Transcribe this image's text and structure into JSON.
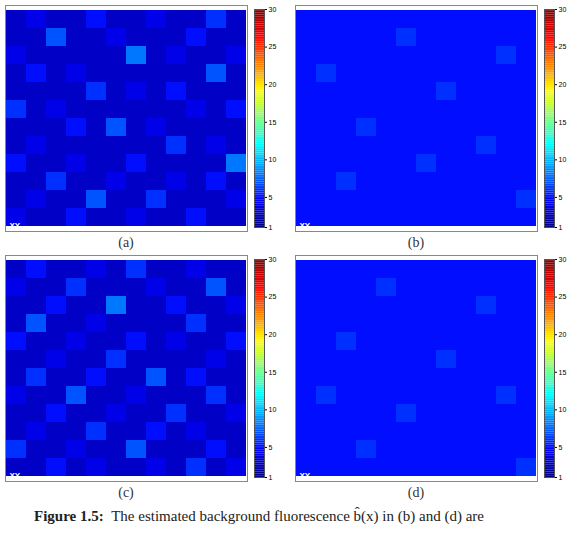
{
  "chart_data": [
    {
      "type": "heatmap",
      "title": "(a)",
      "annotation": "XY",
      "tick_labels": false,
      "cells": [
        [
          3,
          4,
          3,
          3,
          5,
          3,
          3,
          4,
          3,
          3,
          6,
          3
        ],
        [
          3,
          3,
          7,
          3,
          3,
          4,
          3,
          3,
          3,
          5,
          3,
          3
        ],
        [
          4,
          3,
          3,
          3,
          3,
          3,
          8,
          3,
          4,
          3,
          3,
          4
        ],
        [
          3,
          5,
          3,
          4,
          3,
          3,
          3,
          3,
          3,
          3,
          7,
          3
        ],
        [
          3,
          3,
          3,
          3,
          6,
          3,
          4,
          3,
          5,
          3,
          3,
          3
        ],
        [
          6,
          3,
          4,
          3,
          3,
          3,
          3,
          3,
          3,
          4,
          3,
          5
        ],
        [
          3,
          3,
          3,
          5,
          3,
          7,
          3,
          4,
          3,
          3,
          3,
          3
        ],
        [
          3,
          4,
          3,
          3,
          3,
          3,
          3,
          3,
          6,
          3,
          4,
          3
        ],
        [
          5,
          3,
          3,
          4,
          3,
          3,
          5,
          3,
          3,
          3,
          3,
          8
        ],
        [
          3,
          3,
          6,
          3,
          3,
          4,
          3,
          3,
          4,
          3,
          5,
          3
        ],
        [
          3,
          4,
          3,
          3,
          7,
          3,
          3,
          6,
          3,
          3,
          3,
          4
        ],
        [
          4,
          3,
          3,
          5,
          3,
          3,
          4,
          3,
          3,
          5,
          3,
          3
        ]
      ],
      "colorbar": {
        "range": [
          1,
          30
        ],
        "ticks": [
          1,
          5,
          10,
          15,
          20,
          25,
          30
        ]
      }
    },
    {
      "type": "heatmap",
      "title": "(b)",
      "annotation": "XY",
      "tick_labels": false,
      "cells": [
        [
          5,
          5,
          5,
          5,
          5,
          5,
          5,
          5,
          5,
          5,
          5,
          5
        ],
        [
          5,
          5,
          5,
          5,
          5,
          6,
          5,
          5,
          5,
          5,
          5,
          5
        ],
        [
          5,
          5,
          5,
          5,
          5,
          5,
          5,
          5,
          5,
          5,
          6,
          5
        ],
        [
          5,
          6,
          5,
          5,
          5,
          5,
          5,
          5,
          5,
          5,
          5,
          5
        ],
        [
          5,
          5,
          5,
          5,
          5,
          5,
          5,
          6,
          5,
          5,
          5,
          5
        ],
        [
          5,
          5,
          5,
          5,
          5,
          5,
          5,
          5,
          5,
          5,
          5,
          5
        ],
        [
          5,
          5,
          5,
          6,
          5,
          5,
          5,
          5,
          5,
          5,
          5,
          5
        ],
        [
          5,
          5,
          5,
          5,
          5,
          5,
          5,
          5,
          5,
          6,
          5,
          5
        ],
        [
          5,
          5,
          5,
          5,
          5,
          5,
          6,
          5,
          5,
          5,
          5,
          5
        ],
        [
          5,
          5,
          6,
          5,
          5,
          5,
          5,
          5,
          5,
          5,
          5,
          5
        ],
        [
          5,
          5,
          5,
          5,
          5,
          5,
          5,
          5,
          5,
          5,
          5,
          6
        ],
        [
          5,
          5,
          5,
          5,
          5,
          5,
          5,
          5,
          5,
          5,
          5,
          5
        ]
      ],
      "colorbar": {
        "range": [
          1,
          30
        ],
        "ticks": [
          1,
          5,
          10,
          15,
          20,
          25,
          30
        ]
      }
    },
    {
      "type": "heatmap",
      "title": "(c)",
      "annotation": "XY",
      "tick_labels": false,
      "cells": [
        [
          3,
          5,
          3,
          3,
          4,
          3,
          6,
          3,
          3,
          4,
          3,
          3
        ],
        [
          4,
          3,
          3,
          6,
          3,
          3,
          3,
          4,
          3,
          3,
          7,
          3
        ],
        [
          3,
          3,
          5,
          3,
          3,
          8,
          3,
          3,
          5,
          3,
          3,
          4
        ],
        [
          3,
          7,
          3,
          3,
          4,
          3,
          3,
          3,
          3,
          6,
          3,
          3
        ],
        [
          5,
          3,
          3,
          4,
          3,
          3,
          5,
          3,
          4,
          3,
          3,
          5
        ],
        [
          3,
          3,
          4,
          3,
          3,
          6,
          3,
          3,
          3,
          3,
          4,
          3
        ],
        [
          3,
          6,
          3,
          3,
          5,
          3,
          3,
          7,
          3,
          5,
          3,
          3
        ],
        [
          4,
          3,
          3,
          7,
          3,
          3,
          4,
          3,
          3,
          3,
          6,
          3
        ],
        [
          3,
          3,
          5,
          3,
          3,
          4,
          3,
          3,
          6,
          3,
          3,
          4
        ],
        [
          3,
          4,
          3,
          3,
          6,
          3,
          3,
          5,
          3,
          4,
          3,
          3
        ],
        [
          6,
          3,
          3,
          4,
          3,
          3,
          7,
          3,
          3,
          3,
          5,
          3
        ],
        [
          3,
          3,
          5,
          3,
          4,
          3,
          3,
          4,
          3,
          6,
          3,
          4
        ]
      ],
      "colorbar": {
        "range": [
          1,
          30
        ],
        "ticks": [
          1,
          5,
          10,
          15,
          20,
          25,
          30
        ]
      }
    },
    {
      "type": "heatmap",
      "title": "(d)",
      "annotation": "XY",
      "tick_labels": false,
      "cells": [
        [
          5,
          5,
          5,
          5,
          5,
          5,
          5,
          5,
          5,
          5,
          5,
          5
        ],
        [
          5,
          5,
          5,
          5,
          6,
          5,
          5,
          5,
          5,
          5,
          5,
          5
        ],
        [
          5,
          5,
          5,
          5,
          5,
          5,
          5,
          5,
          5,
          6,
          5,
          5
        ],
        [
          5,
          5,
          5,
          5,
          5,
          5,
          5,
          5,
          5,
          5,
          5,
          5
        ],
        [
          5,
          5,
          6,
          5,
          5,
          5,
          5,
          5,
          5,
          5,
          5,
          5
        ],
        [
          5,
          5,
          5,
          5,
          5,
          5,
          5,
          6,
          5,
          5,
          5,
          5
        ],
        [
          5,
          5,
          5,
          5,
          5,
          5,
          5,
          5,
          5,
          5,
          5,
          5
        ],
        [
          5,
          6,
          5,
          5,
          5,
          5,
          5,
          5,
          5,
          5,
          6,
          5
        ],
        [
          5,
          5,
          5,
          5,
          5,
          6,
          5,
          5,
          5,
          5,
          5,
          5
        ],
        [
          5,
          5,
          5,
          5,
          5,
          5,
          5,
          5,
          5,
          5,
          5,
          5
        ],
        [
          5,
          5,
          5,
          6,
          5,
          5,
          5,
          5,
          5,
          5,
          5,
          5
        ],
        [
          5,
          5,
          5,
          5,
          5,
          5,
          5,
          5,
          5,
          5,
          5,
          6
        ]
      ],
      "colorbar": {
        "range": [
          1,
          30
        ],
        "ticks": [
          1,
          5,
          10,
          15,
          20,
          25,
          30
        ]
      }
    }
  ],
  "caption": {
    "label": "Figure 1.5:",
    "text": "The estimated background fluorescence b̂(x) in (b) and (d) are"
  }
}
